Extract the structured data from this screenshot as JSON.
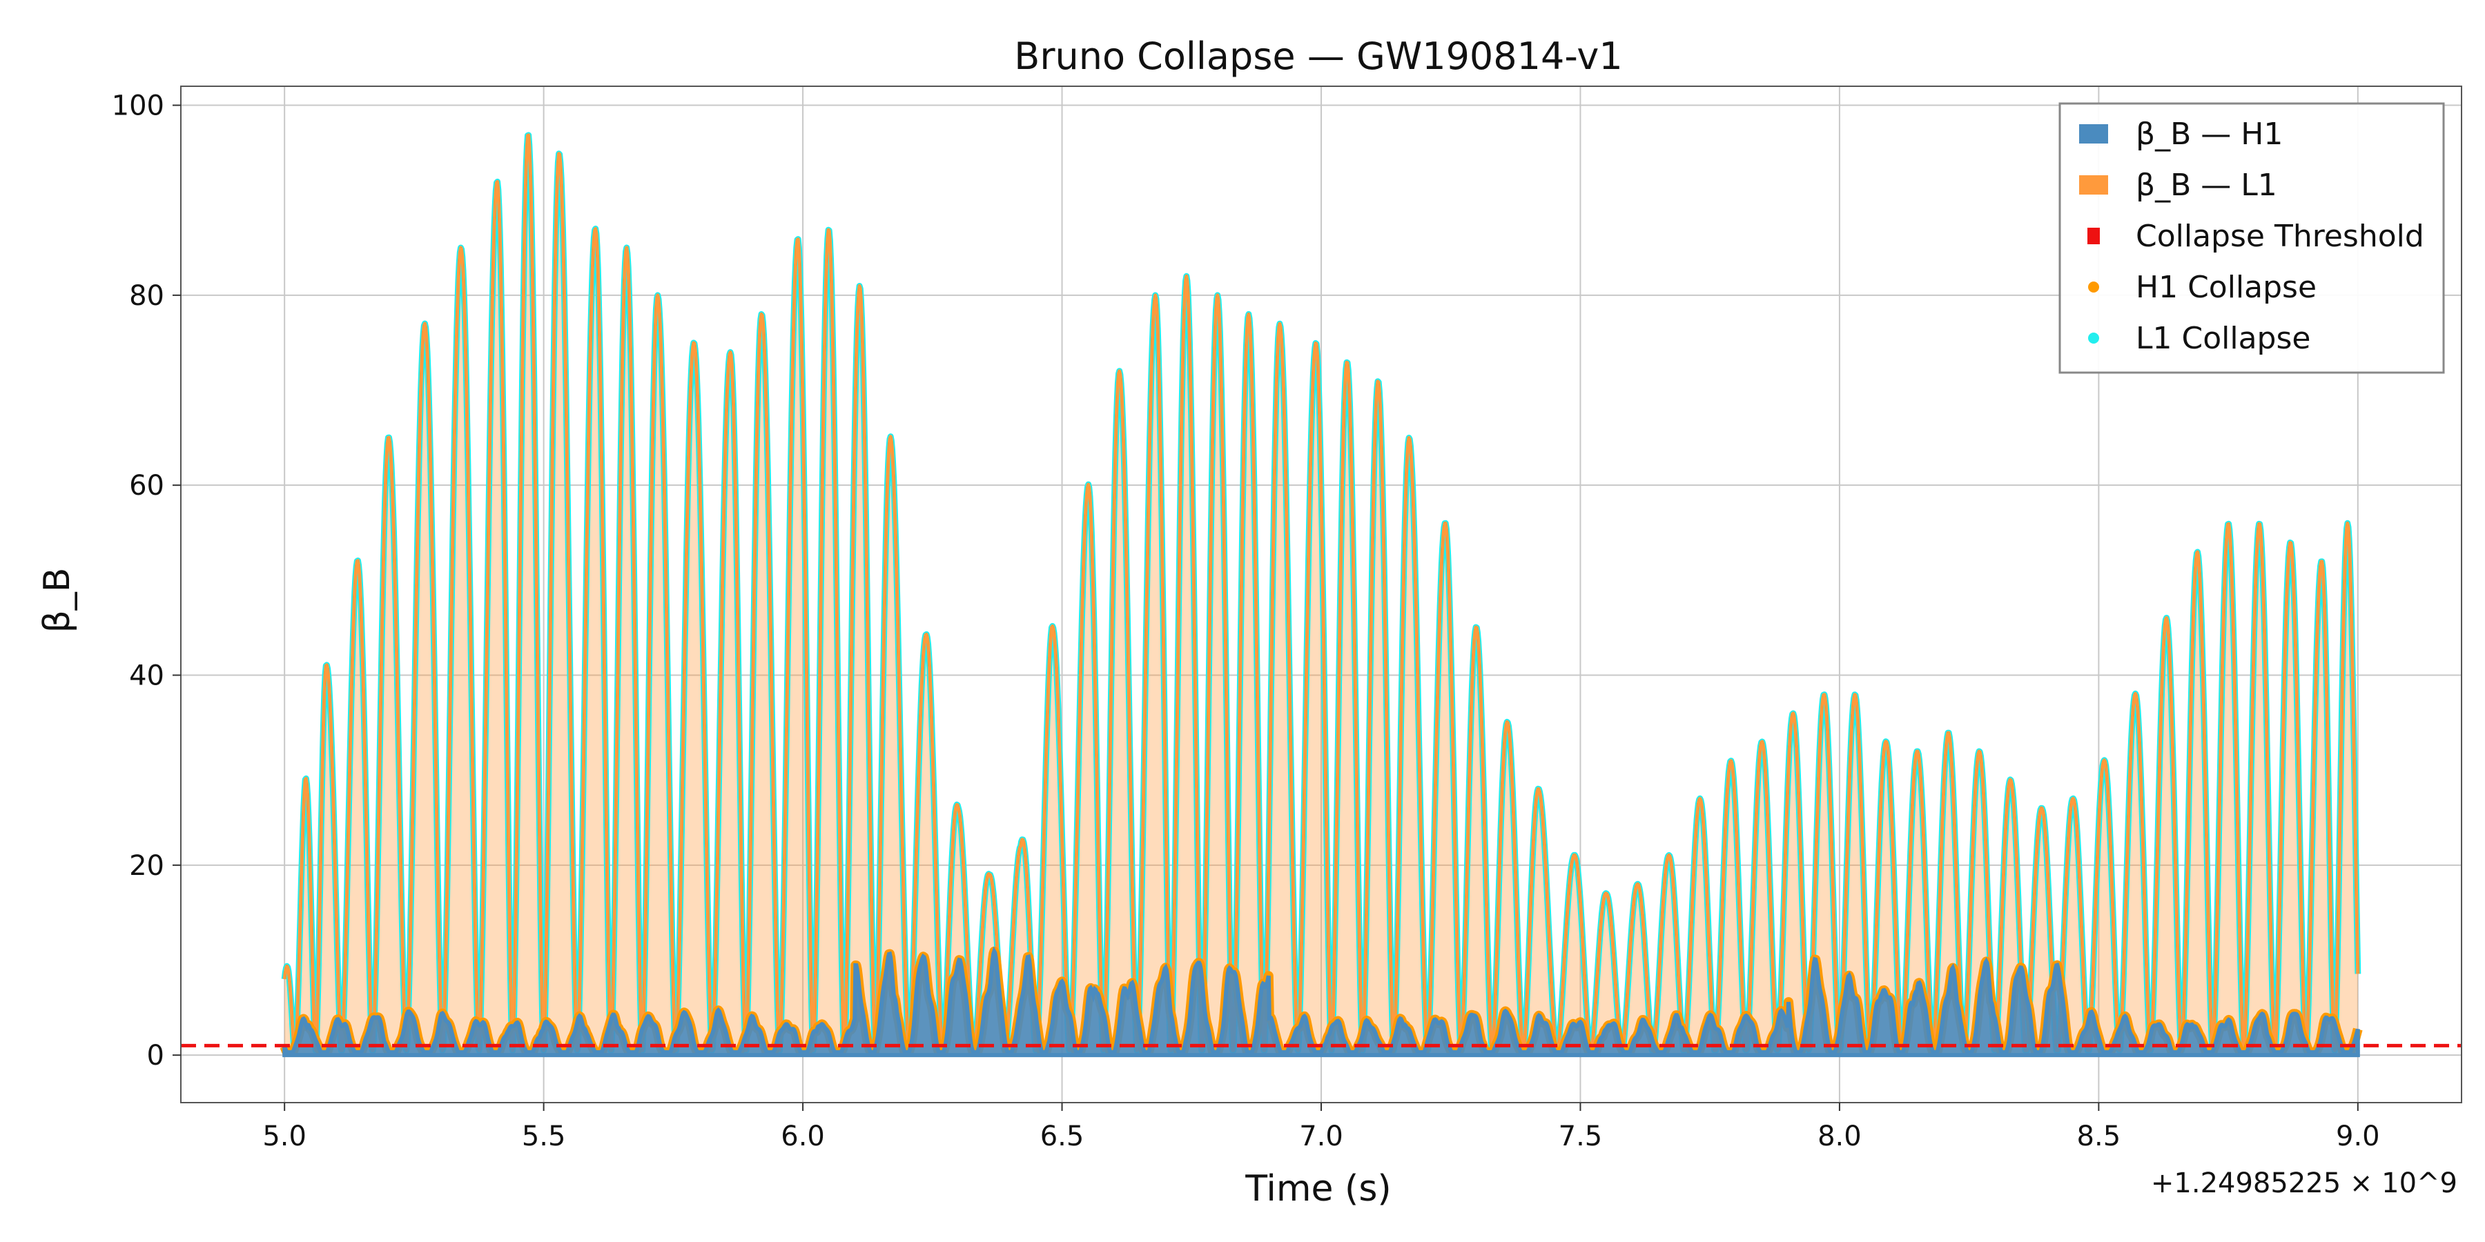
{
  "chart_data": {
    "type": "line",
    "title": "Bruno Collapse — GW190814-v1",
    "xlabel": "Time (s)",
    "ylabel": "β_B",
    "x_offset_label": "+1.24985225 × 10^9",
    "xlim": [
      4.8,
      9.2
    ],
    "ylim": [
      -5,
      102
    ],
    "x_ticks": [
      "5.0",
      "5.5",
      "6.0",
      "6.5",
      "7.0",
      "7.5",
      "8.0",
      "8.5",
      "9.0"
    ],
    "y_ticks": [
      "0",
      "20",
      "40",
      "60",
      "80",
      "100"
    ],
    "grid": true,
    "legend_position": "top-right",
    "threshold": 1.0,
    "colors": {
      "h1": "#4a8bbf",
      "l1": "#ff9a3c",
      "threshold": "#ee1111",
      "h1_collapse": "#ff9a00",
      "l1_collapse": "#22eeee"
    },
    "legend": [
      {
        "key": "h1",
        "label": "β_B — H1",
        "marker": "bar"
      },
      {
        "key": "l1",
        "label": "β_B — L1",
        "marker": "bar"
      },
      {
        "key": "threshold",
        "label": "Collapse Threshold",
        "marker": "square"
      },
      {
        "key": "h1_collapse",
        "label": "H1 Collapse",
        "marker": "dot"
      },
      {
        "key": "l1_collapse",
        "label": "L1 Collapse",
        "marker": "dot"
      }
    ],
    "series": [
      {
        "name": "β_B — L1",
        "x": [
          5.0,
          5.04,
          5.08,
          5.14,
          5.2,
          5.27,
          5.34,
          5.41,
          5.47,
          5.53,
          5.6,
          5.66,
          5.72,
          5.79,
          5.86,
          5.92,
          5.99,
          6.05,
          6.11,
          6.17,
          6.24,
          6.3,
          6.36,
          6.42,
          6.48,
          6.55,
          6.61,
          6.68,
          6.74,
          6.8,
          6.86,
          6.92,
          6.99,
          7.05,
          7.11,
          7.17,
          7.24,
          7.3,
          7.36,
          7.42,
          7.49,
          7.55,
          7.61,
          7.67,
          7.73,
          7.79,
          7.85,
          7.91,
          7.97,
          8.03,
          8.09,
          8.15,
          8.21,
          8.27,
          8.33,
          8.39,
          8.45,
          8.51,
          8.57,
          8.63,
          8.69,
          8.75,
          8.81,
          8.87,
          8.93,
          8.98
        ],
        "values": [
          8,
          29,
          41,
          52,
          65,
          77,
          85,
          92,
          97,
          95,
          87,
          85,
          80,
          75,
          74,
          78,
          86,
          87,
          81,
          65,
          44,
          26,
          19,
          22,
          45,
          60,
          72,
          80,
          82,
          80,
          78,
          77,
          75,
          73,
          71,
          65,
          56,
          45,
          35,
          28,
          21,
          17,
          18,
          21,
          27,
          31,
          33,
          36,
          38,
          38,
          33,
          32,
          34,
          32,
          29,
          26,
          27,
          31,
          38,
          46,
          53,
          56,
          56,
          54,
          52,
          56
        ]
      }
    ]
  }
}
